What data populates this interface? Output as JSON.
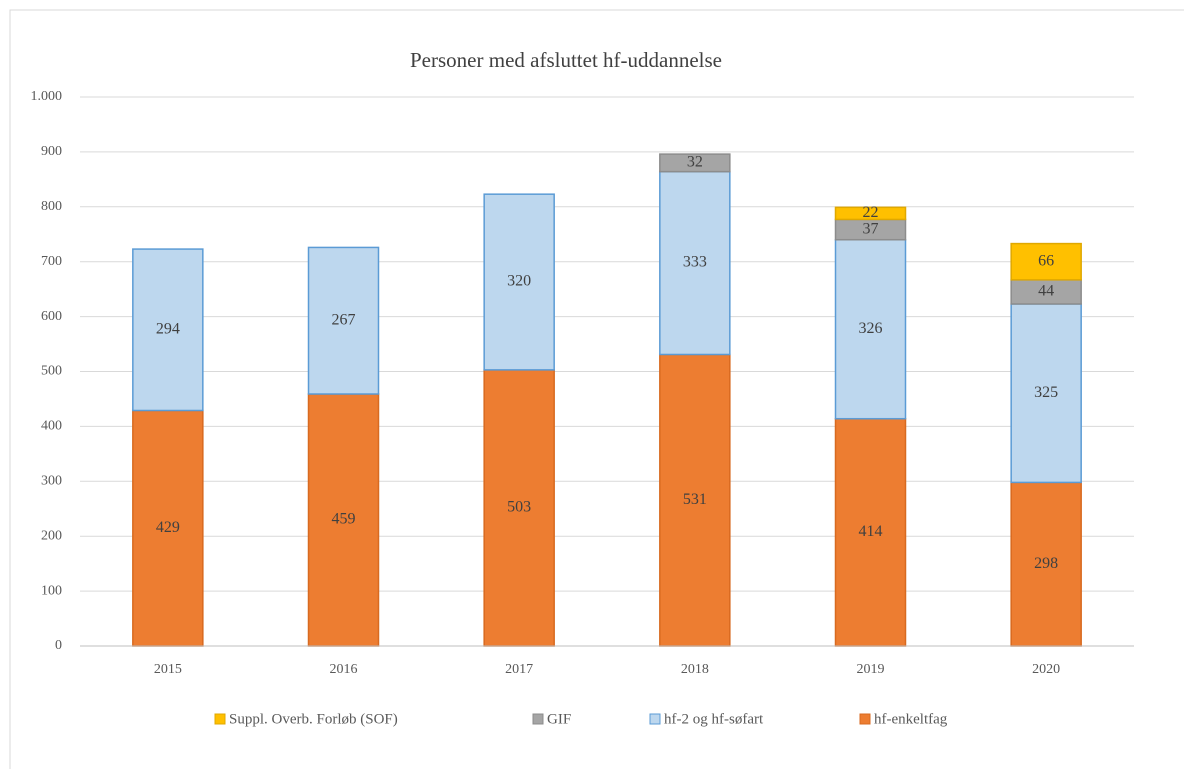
{
  "chart_data": {
    "type": "bar",
    "stacked": true,
    "title": "Personer med afsluttet hf-uddannelse",
    "categories": [
      "2015",
      "2016",
      "2017",
      "2018",
      "2019",
      "2020"
    ],
    "series": [
      {
        "name": "hf-enkeltfag",
        "color": "#ed7d31",
        "values": [
          429,
          459,
          503,
          531,
          414,
          298
        ]
      },
      {
        "name": "hf-2 og hf-søfart",
        "color": "#bdd7ee",
        "values": [
          294,
          267,
          320,
          333,
          326,
          325
        ]
      },
      {
        "name": "GIF",
        "color": "#a5a5a5",
        "values": [
          null,
          null,
          null,
          32,
          37,
          44
        ]
      },
      {
        "name": "Suppl. Overb. Forløb (SOF)",
        "color": "#ffc000",
        "values": [
          null,
          null,
          null,
          null,
          22,
          66
        ]
      }
    ],
    "ylim": [
      0,
      1000
    ],
    "yticks": [
      0,
      100,
      200,
      300,
      400,
      500,
      600,
      700,
      800,
      900,
      {
        "value": 1000,
        "label": "1.000"
      }
    ],
    "grid": true,
    "legend": "bottom"
  }
}
